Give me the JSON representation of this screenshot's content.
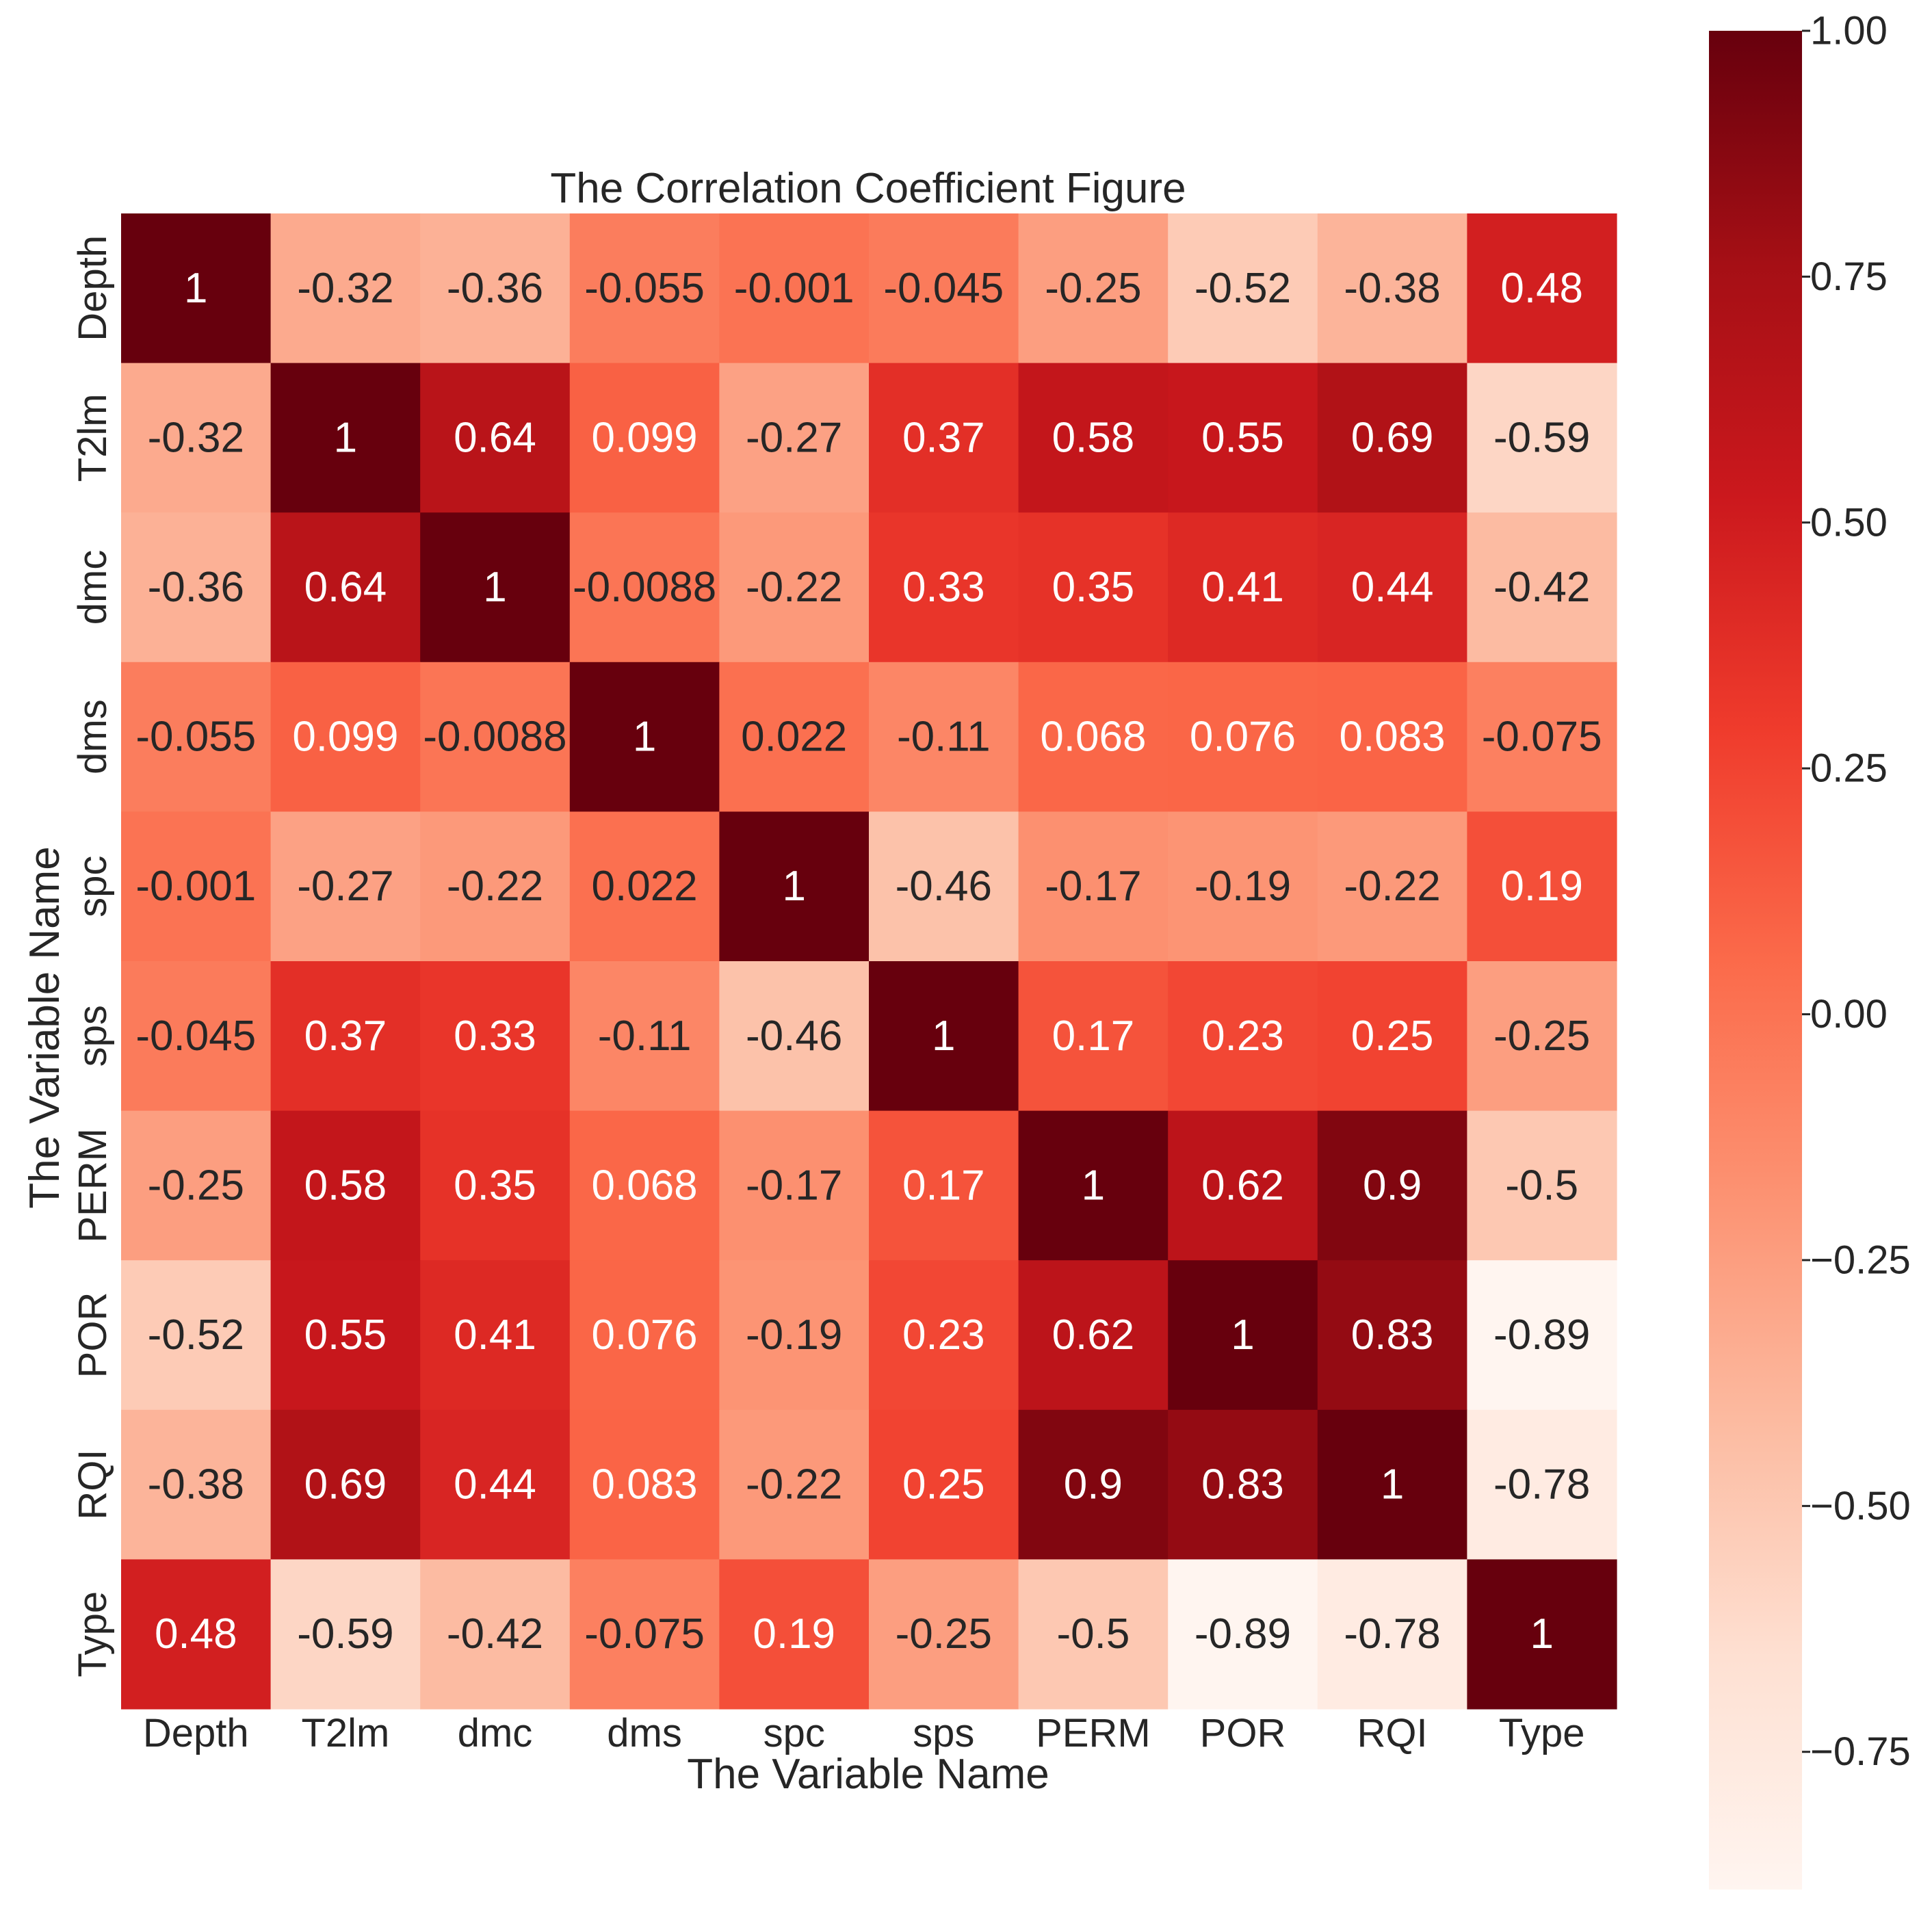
{
  "chart_data": {
    "type": "heatmap",
    "title": "The Correlation Coefficient Figure",
    "xlabel": "The Variable Name",
    "ylabel": "The Variable Name",
    "variables": [
      "Depth",
      "T2lm",
      "dmc",
      "dms",
      "spc",
      "sps",
      "PERM",
      "POR",
      "RQI",
      "Type"
    ],
    "values": [
      [
        1,
        -0.32,
        -0.36,
        -0.055,
        -0.001,
        -0.045,
        -0.25,
        -0.52,
        -0.38,
        0.48
      ],
      [
        -0.32,
        1,
        0.64,
        0.099,
        -0.27,
        0.37,
        0.58,
        0.55,
        0.69,
        -0.59
      ],
      [
        -0.36,
        0.64,
        1,
        -0.0088,
        -0.22,
        0.33,
        0.35,
        0.41,
        0.44,
        -0.42
      ],
      [
        -0.055,
        0.099,
        -0.0088,
        1,
        0.022,
        -0.11,
        0.068,
        0.076,
        0.083,
        -0.075
      ],
      [
        -0.001,
        -0.27,
        -0.22,
        0.022,
        1,
        -0.46,
        -0.17,
        -0.19,
        -0.22,
        0.19
      ],
      [
        -0.045,
        0.37,
        0.33,
        -0.11,
        -0.46,
        1,
        0.17,
        0.23,
        0.25,
        -0.25
      ],
      [
        -0.25,
        0.58,
        0.35,
        0.068,
        -0.17,
        0.17,
        1,
        0.62,
        0.9,
        -0.5
      ],
      [
        -0.52,
        0.55,
        0.41,
        0.076,
        -0.19,
        0.23,
        0.62,
        1,
        0.83,
        -0.89
      ],
      [
        -0.38,
        0.69,
        0.44,
        0.083,
        -0.22,
        0.25,
        0.9,
        0.83,
        1,
        -0.78
      ],
      [
        0.48,
        -0.59,
        -0.42,
        -0.075,
        0.19,
        -0.25,
        -0.5,
        -0.89,
        -0.78,
        1
      ]
    ],
    "value_labels": [
      [
        "1",
        "-0.32",
        "-0.36",
        "-0.055",
        "-0.001",
        "-0.045",
        "-0.25",
        "-0.52",
        "-0.38",
        "0.48"
      ],
      [
        "-0.32",
        "1",
        "0.64",
        "0.099",
        "-0.27",
        "0.37",
        "0.58",
        "0.55",
        "0.69",
        "-0.59"
      ],
      [
        "-0.36",
        "0.64",
        "1",
        "-0.0088",
        "-0.22",
        "0.33",
        "0.35",
        "0.41",
        "0.44",
        "-0.42"
      ],
      [
        "-0.055",
        "0.099",
        "-0.0088",
        "1",
        "0.022",
        "-0.11",
        "0.068",
        "0.076",
        "0.083",
        "-0.075"
      ],
      [
        "-0.001",
        "-0.27",
        "-0.22",
        "0.022",
        "1",
        "-0.46",
        "-0.17",
        "-0.19",
        "-0.22",
        "0.19"
      ],
      [
        "-0.045",
        "0.37",
        "0.33",
        "-0.11",
        "-0.46",
        "1",
        "0.17",
        "0.23",
        "0.25",
        "-0.25"
      ],
      [
        "-0.25",
        "0.58",
        "0.35",
        "0.068",
        "-0.17",
        "0.17",
        "1",
        "0.62",
        "0.9",
        "-0.5"
      ],
      [
        "-0.52",
        "0.55",
        "0.41",
        "0.076",
        "-0.19",
        "0.23",
        "0.62",
        "1",
        "0.83",
        "-0.89"
      ],
      [
        "-0.38",
        "0.69",
        "0.44",
        "0.083",
        "-0.22",
        "0.25",
        "0.9",
        "0.83",
        "1",
        "-0.78"
      ],
      [
        "0.48",
        "-0.59",
        "-0.42",
        "-0.075",
        "0.19",
        "-0.25",
        "-0.5",
        "-0.89",
        "-0.78",
        "1"
      ]
    ],
    "colorbar": {
      "colormap": "Reds",
      "vmin": -0.89,
      "vmax": 1.0,
      "ticks": [
        1.0,
        0.75,
        0.5,
        0.25,
        0.0,
        -0.25,
        -0.5,
        -0.75
      ],
      "tick_labels": [
        "1.00",
        "0.75",
        "0.50",
        "0.25",
        "0.00",
        "−0.25",
        "−0.50",
        "−0.75"
      ],
      "position": "right"
    },
    "colors": {
      "reds_stops": [
        "#fff5f0",
        "#fee0d2",
        "#fcbba1",
        "#fc9272",
        "#fb6a4a",
        "#ef3b2c",
        "#cb181d",
        "#a50f15",
        "#67000d"
      ],
      "text_light": "#ffffff",
      "text_dark": "#262626",
      "axis_text": "#262626"
    }
  }
}
